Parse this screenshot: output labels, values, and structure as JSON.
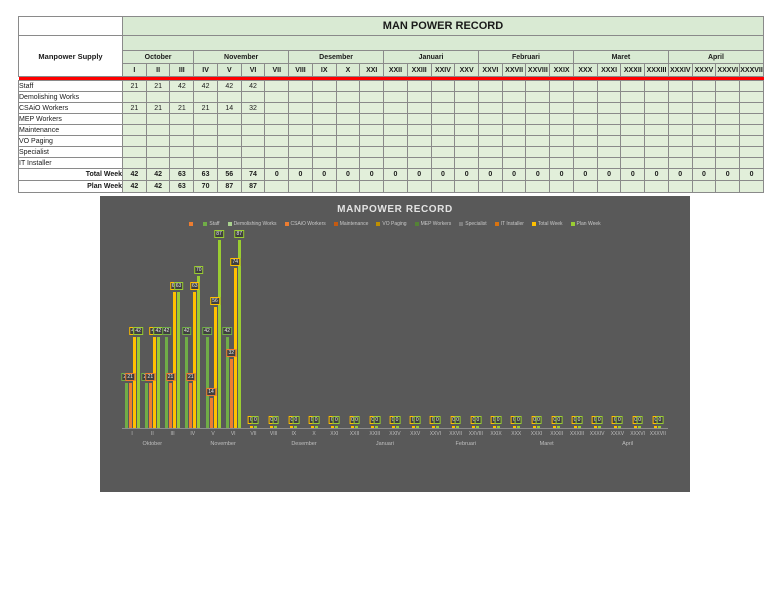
{
  "colors": {
    "table_title_green": "#d9ead3",
    "table_cell_green": "#e2efda",
    "divider_red": "#ff0000",
    "chart_background": "#595959"
  },
  "table": {
    "title": "MAN POWER RECORD",
    "corner_label": "Manpower Supply",
    "months": [
      {
        "label": "October",
        "weeks": [
          "I",
          "II",
          "III"
        ]
      },
      {
        "label": "November",
        "weeks": [
          "IV",
          "V",
          "VI",
          "VII"
        ]
      },
      {
        "label": "Desember",
        "weeks": [
          "VIII",
          "IX",
          "X",
          "XXI"
        ]
      },
      {
        "label": "Januari",
        "weeks": [
          "XXII",
          "XXIII",
          "XXIV",
          "XXV"
        ]
      },
      {
        "label": "Februari",
        "weeks": [
          "XXVI",
          "XXVII",
          "XXVIII",
          "XXIX"
        ]
      },
      {
        "label": "Maret",
        "weeks": [
          "XXX",
          "XXXI",
          "XXXII",
          "XXXIII"
        ]
      },
      {
        "label": "April",
        "weeks": [
          "XXXIV",
          "XXXV",
          "XXXVI",
          "XXXVII"
        ]
      }
    ],
    "rows": [
      {
        "label": "Staff",
        "values": [
          "21",
          "21",
          "42",
          "42",
          "42",
          "42",
          "",
          "",
          "",
          "",
          "",
          "",
          "",
          "",
          "",
          "",
          "",
          "",
          "",
          "",
          "",
          "",
          "",
          "",
          "",
          "",
          ""
        ]
      },
      {
        "label": "Demolishing Works",
        "values": [
          "",
          "",
          "",
          "",
          "",
          "",
          "",
          "",
          "",
          "",
          "",
          "",
          "",
          "",
          "",
          "",
          "",
          "",
          "",
          "",
          "",
          "",
          "",
          "",
          "",
          "",
          ""
        ]
      },
      {
        "label": "CSAiO Workers",
        "values": [
          "21",
          "21",
          "21",
          "21",
          "14",
          "32",
          "",
          "",
          "",
          "",
          "",
          "",
          "",
          "",
          "",
          "",
          "",
          "",
          "",
          "",
          "",
          "",
          "",
          "",
          "",
          "",
          ""
        ]
      },
      {
        "label": "MEP Workers",
        "values": [
          "",
          "",
          "",
          "",
          "",
          "",
          "",
          "",
          "",
          "",
          "",
          "",
          "",
          "",
          "",
          "",
          "",
          "",
          "",
          "",
          "",
          "",
          "",
          "",
          "",
          "",
          ""
        ]
      },
      {
        "label": "Maintenance",
        "values": [
          "",
          "",
          "",
          "",
          "",
          "",
          "",
          "",
          "",
          "",
          "",
          "",
          "",
          "",
          "",
          "",
          "",
          "",
          "",
          "",
          "",
          "",
          "",
          "",
          "",
          "",
          ""
        ]
      },
      {
        "label": "VO Paging",
        "values": [
          "",
          "",
          "",
          "",
          "",
          "",
          "",
          "",
          "",
          "",
          "",
          "",
          "",
          "",
          "",
          "",
          "",
          "",
          "",
          "",
          "",
          "",
          "",
          "",
          "",
          "",
          ""
        ]
      },
      {
        "label": "Specialist",
        "values": [
          "",
          "",
          "",
          "",
          "",
          "",
          "",
          "",
          "",
          "",
          "",
          "",
          "",
          "",
          "",
          "",
          "",
          "",
          "",
          "",
          "",
          "",
          "",
          "",
          "",
          "",
          ""
        ]
      },
      {
        "label": "IT Installer",
        "values": [
          "",
          "",
          "",
          "",
          "",
          "",
          "",
          "",
          "",
          "",
          "",
          "",
          "",
          "",
          "",
          "",
          "",
          "",
          "",
          "",
          "",
          "",
          "",
          "",
          "",
          "",
          ""
        ]
      }
    ],
    "total_row": {
      "label": "Total Week",
      "values": [
        "42",
        "42",
        "63",
        "63",
        "56",
        "74",
        "0",
        "0",
        "0",
        "0",
        "0",
        "0",
        "0",
        "0",
        "0",
        "0",
        "0",
        "0",
        "0",
        "0",
        "0",
        "0",
        "0",
        "0",
        "0",
        "0",
        "0"
      ]
    },
    "plan_row": {
      "label": "Plan Week",
      "values": [
        "42",
        "42",
        "63",
        "70",
        "87",
        "87",
        "",
        "",
        "",
        "",
        "",
        "",
        "",
        "",
        "",
        "",
        "",
        "",
        "",
        "",
        "",
        "",
        "",
        "",
        "",
        "",
        ""
      ]
    }
  },
  "chart_data": {
    "type": "bar",
    "title": "MANPOWER RECORD",
    "background": "#595959",
    "grid": false,
    "legend_position": "top",
    "ylim": [
      0,
      90
    ],
    "categories": [
      "I",
      "II",
      "III",
      "IV",
      "V",
      "VI",
      "VII",
      "VIII",
      "IX",
      "X",
      "XXI",
      "XXII",
      "XXIII",
      "XXIV",
      "XXV",
      "XXVI",
      "XXVII",
      "XXVIII",
      "XXIX",
      "XXX",
      "XXXI",
      "XXXII",
      "XXXIII",
      "XXXIV",
      "XXXV",
      "XXXVI",
      "XXXVII"
    ],
    "month_groups": [
      {
        "label": "Oktober",
        "span": 3
      },
      {
        "label": "November",
        "span": 4
      },
      {
        "label": "Desember",
        "span": 4
      },
      {
        "label": "Januari",
        "span": 4
      },
      {
        "label": "Februari",
        "span": 4
      },
      {
        "label": "Maret",
        "span": 4
      },
      {
        "label": "April",
        "span": 4
      }
    ],
    "series": [
      {
        "name": "Staff",
        "color": "#70ad47",
        "values": [
          21,
          21,
          42,
          42,
          42,
          42,
          null,
          null,
          null,
          null,
          null,
          null,
          null,
          null,
          null,
          null,
          null,
          null,
          null,
          null,
          null,
          null,
          null,
          null,
          null,
          null,
          null
        ]
      },
      {
        "name": "CSAiO Workers",
        "color": "#ed7d31",
        "values": [
          21,
          21,
          21,
          21,
          14,
          32,
          null,
          null,
          null,
          null,
          null,
          null,
          null,
          null,
          null,
          null,
          null,
          null,
          null,
          null,
          null,
          null,
          null,
          null,
          null,
          null,
          null
        ]
      },
      {
        "name": "Total Week",
        "color": "#ffc000",
        "values": [
          42,
          42,
          63,
          63,
          56,
          74,
          0,
          0,
          0,
          0,
          0,
          0,
          0,
          0,
          0,
          0,
          0,
          0,
          0,
          0,
          0,
          0,
          0,
          0,
          0,
          0,
          0
        ]
      },
      {
        "name": "Plan Week",
        "color": "#9acd32",
        "values": [
          42,
          42,
          63,
          70,
          87,
          87,
          0,
          0,
          0,
          0,
          0,
          0,
          0,
          0,
          0,
          0,
          0,
          0,
          0,
          0,
          0,
          0,
          0,
          0,
          0,
          0,
          0
        ]
      }
    ],
    "legend": [
      {
        "label": "",
        "color": "#ed7d31"
      },
      {
        "label": "Staff",
        "color": "#70ad47"
      },
      {
        "label": "Demolishing Works",
        "color": "#a9d18e"
      },
      {
        "label": "CSAiO Workers",
        "color": "#ed7d31"
      },
      {
        "label": "Maintenance",
        "color": "#c55a11"
      },
      {
        "label": "VO Paging",
        "color": "#bf8f00"
      },
      {
        "label": "MEP Workers",
        "color": "#548235"
      },
      {
        "label": "Specialist",
        "color": "#7f7f7f"
      },
      {
        "label": "IT Installer",
        "color": "#d9730f"
      },
      {
        "label": "Total Week",
        "color": "#ffc000"
      },
      {
        "label": "Plan Week",
        "color": "#9acd32"
      }
    ]
  }
}
